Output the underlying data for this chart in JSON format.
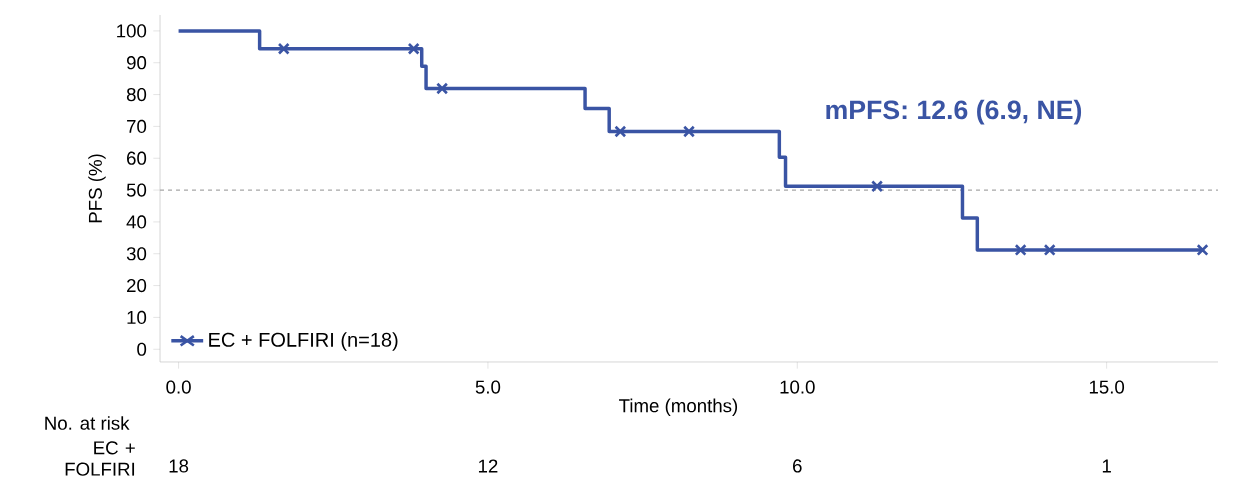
{
  "chart_data": {
    "type": "step",
    "xlabel": "Time (months)",
    "ylabel": "PFS (%)",
    "xlim": [
      -0.3,
      16.8
    ],
    "ylim": [
      -4,
      105
    ],
    "xticks": [
      {
        "value": 0,
        "label": "0.0"
      },
      {
        "value": 5,
        "label": "5.0"
      },
      {
        "value": 10,
        "label": "10.0"
      },
      {
        "value": 15,
        "label": "15.0"
      }
    ],
    "yticks": [
      0,
      10,
      20,
      30,
      40,
      50,
      60,
      70,
      80,
      90,
      100
    ],
    "series": [
      {
        "name": "EC + FOLFIRI (n=18)",
        "color": "#3a54a4",
        "marker": "none",
        "line_style": "solid",
        "x": [
          0,
          1.31,
          3.93,
          4.0,
          6.57,
          6.96,
          9.71,
          9.81,
          12.67,
          12.91,
          16.55
        ],
        "values": [
          100,
          94.4,
          88.9,
          81.9,
          75.6,
          68.4,
          60.3,
          51.2,
          41.2,
          31.2,
          31.2
        ]
      },
      {
        "type": "scatter",
        "color": "#3a54a4",
        "marker": "cross",
        "x": [
          1.7,
          3.8,
          4.26,
          7.14,
          8.25,
          11.29,
          13.61,
          14.08,
          16.55
        ],
        "values": [
          94.4,
          94.4,
          81.9,
          68.4,
          68.4,
          51.2,
          31.2,
          31.2,
          31.2
        ]
      }
    ],
    "ref_lines": [
      {
        "axis": "y",
        "value": 50,
        "color": "#a6a6a6",
        "line_style": "dashed"
      }
    ],
    "legend": "bottom left",
    "grid": false,
    "annotations": [
      "mPFS: 12.6 (6.9, NE)",
      "No. at risk",
      "EC + FOLFIRI",
      "18",
      "12",
      "6",
      "1"
    ]
  }
}
